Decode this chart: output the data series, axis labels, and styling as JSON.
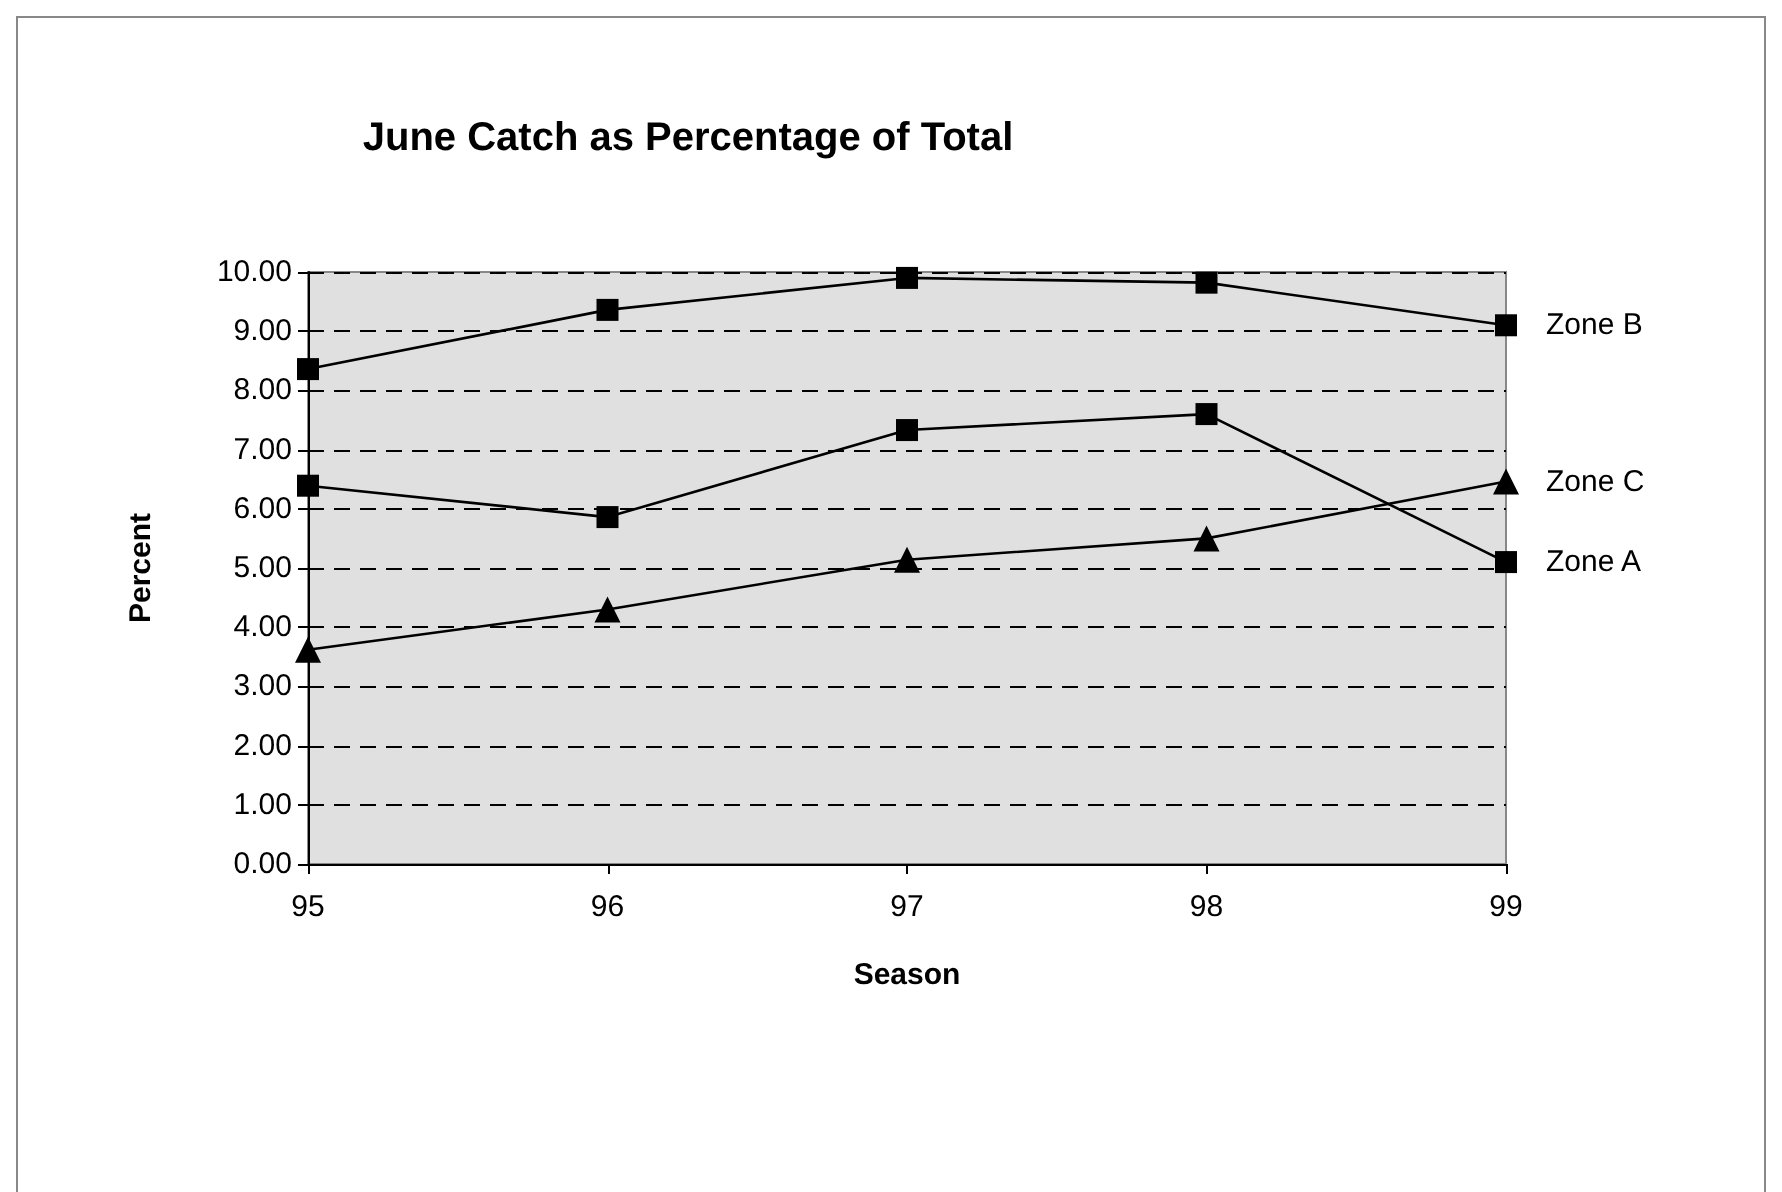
{
  "chart_data": {
    "type": "line",
    "title": "June Catch as Percentage of Total",
    "xlabel": "Season",
    "ylabel": "Percent",
    "categories": [
      "95",
      "96",
      "97",
      "98",
      "99"
    ],
    "series": [
      {
        "name": "Zone A",
        "color": "#000000",
        "marker": "square",
        "values": [
          6.39,
          5.86,
          7.33,
          7.6,
          5.1
        ]
      },
      {
        "name": "Zone B",
        "color": "#000000",
        "marker": "square",
        "values": [
          8.36,
          9.36,
          9.9,
          9.82,
          9.1
        ]
      },
      {
        "name": "Zone C",
        "color": "#000000",
        "marker": "triangle",
        "values": [
          3.62,
          4.3,
          5.14,
          5.5,
          6.46
        ]
      }
    ],
    "ylim": [
      0,
      10
    ],
    "yticks": [
      {
        "value": 0,
        "label": "0.00"
      },
      {
        "value": 1,
        "label": "1.00"
      },
      {
        "value": 2,
        "label": "2.00"
      },
      {
        "value": 3,
        "label": "3.00"
      },
      {
        "value": 4,
        "label": "4.00"
      },
      {
        "value": 5,
        "label": "5.00"
      },
      {
        "value": 6,
        "label": "6.00"
      },
      {
        "value": 7,
        "label": "7.00"
      },
      {
        "value": 8,
        "label": "8.00"
      },
      {
        "value": 9,
        "label": "9.00"
      },
      {
        "value": 10,
        "label": "10.00"
      }
    ],
    "grid": "y",
    "legend": false,
    "line_style": "solid"
  }
}
